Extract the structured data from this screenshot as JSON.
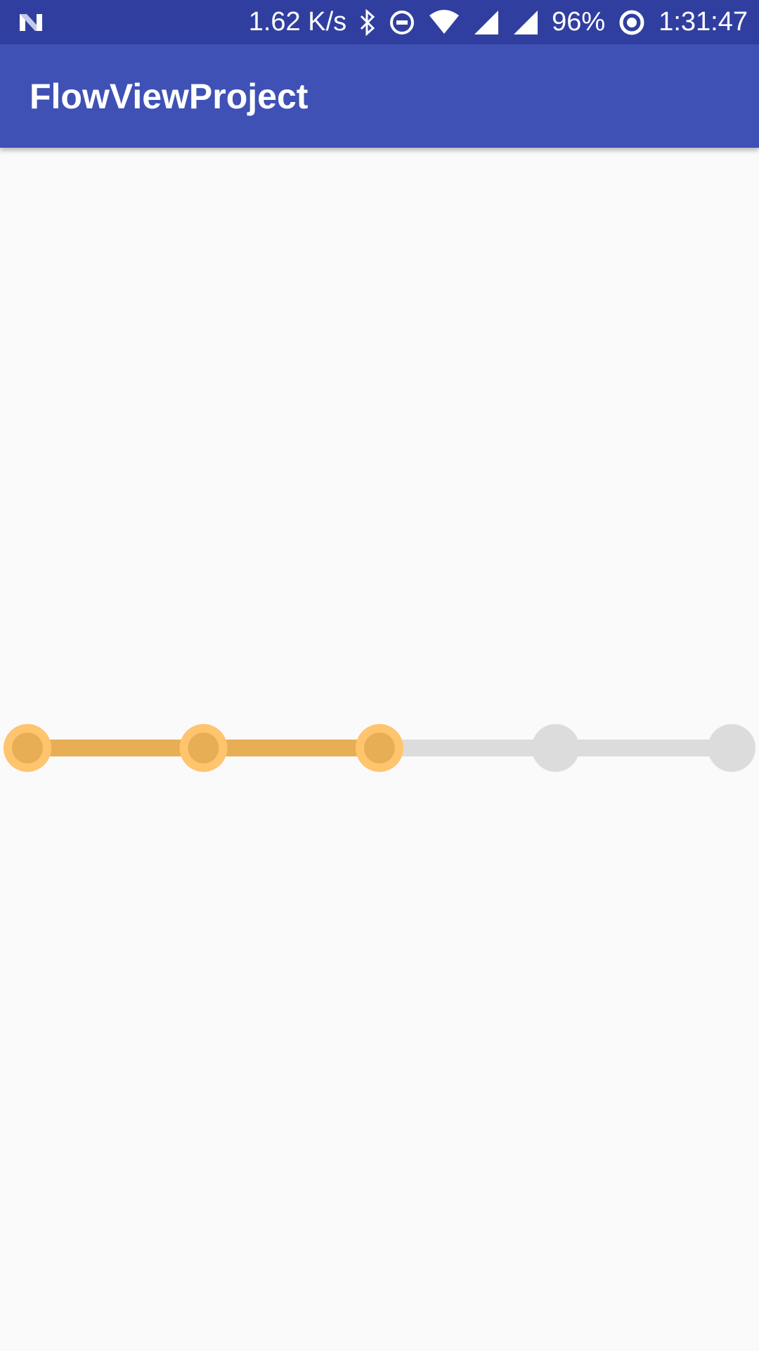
{
  "status_bar": {
    "notification_icon": "n-logo-icon",
    "net_speed": "1.62 K/s",
    "icons": [
      "bluetooth-icon",
      "do-not-disturb-icon",
      "wifi-icon",
      "signal-icon",
      "signal-icon",
      "battery-saver-icon"
    ],
    "battery": "96%",
    "time": "1:31:47",
    "color": "#303f9f"
  },
  "app_bar": {
    "title": "FlowViewProject",
    "color": "#3f51b5"
  },
  "flow_view": {
    "total_steps": 5,
    "current_step": 3,
    "active_fill_color": "#e8ae55",
    "active_ring_color": "#ffc46e",
    "inactive_color": "#dcdcdc"
  }
}
